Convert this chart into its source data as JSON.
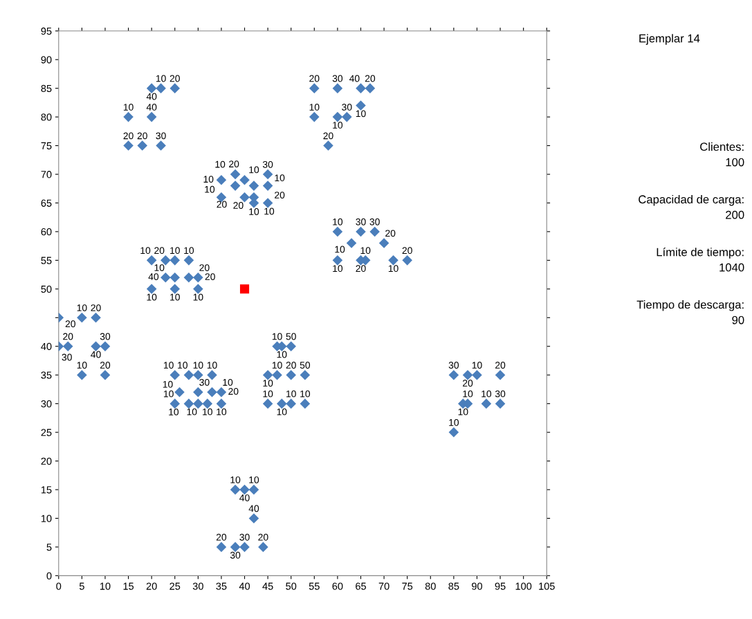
{
  "chart_data": {
    "type": "scatter",
    "title": "Ejemplar 14",
    "xlim": [
      0,
      105
    ],
    "xticks": [
      0,
      5,
      10,
      15,
      20,
      25,
      30,
      35,
      40,
      45,
      50,
      55,
      60,
      65,
      70,
      75,
      80,
      85,
      90,
      95,
      100,
      105
    ],
    "ylim": [
      0,
      95
    ],
    "yticks": [
      0,
      5,
      10,
      15,
      20,
      25,
      30,
      35,
      40,
      {
        "value": 45,
        "label": null
      },
      50,
      55,
      60,
      65,
      70,
      75,
      80,
      85,
      90,
      95
    ],
    "grid": false,
    "legend": false,
    "series": [
      {
        "color": "#4a7ebb",
        "marker": "diamond",
        "x": [
          45,
          45,
          42,
          42,
          42,
          40,
          40,
          38,
          38,
          35,
          35,
          25,
          22,
          22,
          20,
          20,
          18,
          15,
          15,
          30,
          30,
          28,
          28,
          25,
          25,
          25,
          23,
          23,
          20,
          20,
          10,
          10,
          8,
          8,
          5,
          5,
          2,
          0,
          0,
          35,
          35,
          33,
          33,
          32,
          30,
          30,
          30,
          28,
          28,
          26,
          25,
          25,
          44,
          42,
          42,
          40,
          40,
          38,
          38,
          35,
          50,
          50,
          50,
          48,
          48,
          47,
          47,
          45,
          45,
          95,
          95,
          53,
          92,
          53,
          45,
          90,
          88,
          88,
          87,
          85,
          85,
          75,
          72,
          70,
          68,
          66,
          65,
          65,
          63,
          60,
          60,
          67,
          65,
          65,
          62,
          60,
          60,
          58,
          55,
          55
        ],
        "values": [
          68,
          70,
          66,
          68,
          65,
          69,
          66,
          68,
          70,
          66,
          69,
          85,
          75,
          85,
          80,
          85,
          75,
          75,
          80,
          50,
          52,
          52,
          55,
          50,
          52,
          55,
          52,
          55,
          50,
          55,
          35,
          40,
          40,
          45,
          35,
          45,
          40,
          40,
          45,
          30,
          32,
          32,
          35,
          30,
          30,
          32,
          35,
          30,
          35,
          32,
          30,
          35,
          5,
          10,
          15,
          5,
          15,
          5,
          15,
          5,
          30,
          35,
          40,
          30,
          40,
          35,
          40,
          30,
          35,
          30,
          35,
          30,
          30,
          35,
          65,
          35,
          30,
          35,
          30,
          25,
          35,
          55,
          55,
          58,
          60,
          55,
          55,
          60,
          58,
          55,
          60,
          85,
          85,
          82,
          80,
          80,
          85,
          75,
          80,
          85
        ]
      },
      {
        "color": "#ff0000",
        "marker": "square",
        "x": [
          40
        ],
        "values": [
          50
        ]
      }
    ],
    "annotations": [
      {
        "text": "10",
        "x": 45,
        "y": 68
      },
      {
        "text": "30",
        "x": 45,
        "y": 70
      },
      {
        "text": "10",
        "x": 42,
        "y": 66
      },
      {
        "text": "10",
        "x": 42,
        "y": 68
      },
      {
        "text": "10",
        "x": 42,
        "y": 65
      },
      {
        "text": "20",
        "x": 40,
        "y": 69
      },
      {
        "text": "20",
        "x": 40,
        "y": 66
      },
      {
        "text": "20",
        "x": 38,
        "y": 68
      },
      {
        "text": "10",
        "x": 38,
        "y": 70
      },
      {
        "text": "10",
        "x": 35,
        "y": 66
      },
      {
        "text": "10",
        "x": 35,
        "y": 69
      },
      {
        "text": "20",
        "x": 25,
        "y": 85
      },
      {
        "text": "30",
        "x": 22,
        "y": 75
      },
      {
        "text": "10",
        "x": 22,
        "y": 85
      },
      {
        "text": "40",
        "x": 20,
        "y": 80
      },
      {
        "text": "40",
        "x": 20,
        "y": 85
      },
      {
        "text": "20",
        "x": 18,
        "y": 75
      },
      {
        "text": "20",
        "x": 15,
        "y": 75
      },
      {
        "text": "10",
        "x": 15,
        "y": 80
      },
      {
        "text": "10",
        "x": 30,
        "y": 50
      },
      {
        "text": "20",
        "x": 30,
        "y": 52
      },
      {
        "text": "20",
        "x": 28,
        "y": 52
      },
      {
        "text": "10",
        "x": 28,
        "y": 55
      },
      {
        "text": "10",
        "x": 25,
        "y": 50
      },
      {
        "text": "40",
        "x": 25,
        "y": 52
      },
      {
        "text": "10",
        "x": 25,
        "y": 55
      },
      {
        "text": "10",
        "x": 23,
        "y": 52
      },
      {
        "text": "20",
        "x": 23,
        "y": 55
      },
      {
        "text": "10",
        "x": 20,
        "y": 50
      },
      {
        "text": "10",
        "x": 20,
        "y": 55
      },
      {
        "text": "20",
        "x": 10,
        "y": 35
      },
      {
        "text": "30",
        "x": 10,
        "y": 40
      },
      {
        "text": "40",
        "x": 8,
        "y": 40
      },
      {
        "text": "20",
        "x": 8,
        "y": 45
      },
      {
        "text": "10",
        "x": 5,
        "y": 35
      },
      {
        "text": "10",
        "x": 5,
        "y": 45
      },
      {
        "text": "20",
        "x": 2,
        "y": 40
      },
      {
        "text": "30",
        "x": 0,
        "y": 40
      },
      {
        "text": "20",
        "x": 0,
        "y": 45
      },
      {
        "text": "10",
        "x": 35,
        "y": 30
      },
      {
        "text": "10",
        "x": 35,
        "y": 32
      },
      {
        "text": "20",
        "x": 33,
        "y": 32
      },
      {
        "text": "10",
        "x": 33,
        "y": 35
      },
      {
        "text": "10",
        "x": 32,
        "y": 30
      },
      {
        "text": "10",
        "x": 30,
        "y": 30
      },
      {
        "text": "30",
        "x": 30,
        "y": 32
      },
      {
        "text": "10",
        "x": 30,
        "y": 35
      },
      {
        "text": "10",
        "x": 28,
        "y": 30
      },
      {
        "text": "10",
        "x": 28,
        "y": 35
      },
      {
        "text": "10",
        "x": 26,
        "y": 32
      },
      {
        "text": "10",
        "x": 25,
        "y": 30
      },
      {
        "text": "10",
        "x": 25,
        "y": 35
      },
      {
        "text": "20",
        "x": 44,
        "y": 5
      },
      {
        "text": "40",
        "x": 42,
        "y": 10
      },
      {
        "text": "10",
        "x": 42,
        "y": 15
      },
      {
        "text": "30",
        "x": 40,
        "y": 5
      },
      {
        "text": "40",
        "x": 40,
        "y": 15
      },
      {
        "text": "30",
        "x": 38,
        "y": 5
      },
      {
        "text": "10",
        "x": 38,
        "y": 15
      },
      {
        "text": "20",
        "x": 35,
        "y": 5
      },
      {
        "text": "10",
        "x": 50,
        "y": 30
      },
      {
        "text": "20",
        "x": 50,
        "y": 35
      },
      {
        "text": "50",
        "x": 50,
        "y": 40
      },
      {
        "text": "10",
        "x": 48,
        "y": 30
      },
      {
        "text": "10",
        "x": 48,
        "y": 40
      },
      {
        "text": "10",
        "x": 47,
        "y": 35
      },
      {
        "text": "10",
        "x": 47,
        "y": 40
      },
      {
        "text": "10",
        "x": 45,
        "y": 30
      },
      {
        "text": "10",
        "x": 45,
        "y": 35
      },
      {
        "text": "30",
        "x": 95,
        "y": 30
      },
      {
        "text": "20",
        "x": 95,
        "y": 35
      },
      {
        "text": "10",
        "x": 53,
        "y": 30
      },
      {
        "text": "10",
        "x": 92,
        "y": 30
      },
      {
        "text": "50",
        "x": 53,
        "y": 35
      },
      {
        "text": "20",
        "x": 45,
        "y": 65
      },
      {
        "text": "10",
        "x": 90,
        "y": 35
      },
      {
        "text": "10",
        "x": 88,
        "y": 30
      },
      {
        "text": "20",
        "x": 88,
        "y": 35
      },
      {
        "text": "10",
        "x": 87,
        "y": 30
      },
      {
        "text": "10",
        "x": 85,
        "y": 25
      },
      {
        "text": "30",
        "x": 85,
        "y": 35
      },
      {
        "text": "20",
        "x": 75,
        "y": 55
      },
      {
        "text": "10",
        "x": 72,
        "y": 55
      },
      {
        "text": "20",
        "x": 70,
        "y": 58
      },
      {
        "text": "30",
        "x": 68,
        "y": 60
      },
      {
        "text": "10",
        "x": 66,
        "y": 55
      },
      {
        "text": "20",
        "x": 65,
        "y": 55
      },
      {
        "text": "30",
        "x": 65,
        "y": 60
      },
      {
        "text": "10",
        "x": 63,
        "y": 58
      },
      {
        "text": "10",
        "x": 60,
        "y": 55
      },
      {
        "text": "10",
        "x": 60,
        "y": 60
      },
      {
        "text": "20",
        "x": 67,
        "y": 85
      },
      {
        "text": "40",
        "x": 65,
        "y": 85
      },
      {
        "text": "10",
        "x": 65,
        "y": 82
      },
      {
        "text": "30",
        "x": 62,
        "y": 80
      },
      {
        "text": "10",
        "x": 60,
        "y": 80
      },
      {
        "text": "30",
        "x": 60,
        "y": 85
      },
      {
        "text": "20",
        "x": 58,
        "y": 75
      },
      {
        "text": "10",
        "x": 55,
        "y": 80
      },
      {
        "text": "20",
        "x": 55,
        "y": 85
      },
      "Clientes:",
      "100",
      "Capacidad de carga:",
      "200",
      "Límite de tiempo:",
      "1040",
      "Tiempo de descarga:",
      "90"
    ]
  }
}
